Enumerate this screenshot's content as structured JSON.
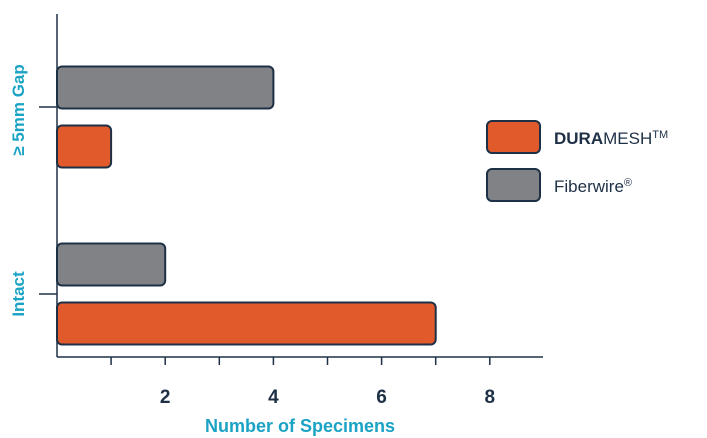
{
  "chart_data": {
    "type": "bar",
    "orientation": "horizontal",
    "categories": [
      "≥ 5mm Gap",
      "Intact"
    ],
    "series": [
      {
        "name": "DURAMESH™",
        "values": [
          1,
          7
        ],
        "color": "#e05a2b"
      },
      {
        "name": "Fiberwire®",
        "values": [
          4,
          2
        ],
        "color": "#808285"
      }
    ],
    "xlabel": "Number of Specimens",
    "ylabel": "",
    "xlim": [
      0,
      9
    ],
    "xticks": [
      2,
      4,
      6,
      8
    ],
    "grid": false,
    "legend_position": "right"
  },
  "legend": {
    "duramesh": {
      "bold": "DURA",
      "rest": "MESH",
      "sup": "TM"
    },
    "fiberwire": {
      "text": "Fiberwire",
      "sup": "®"
    }
  },
  "colors": {
    "axis": "#1e3045",
    "accent_label": "#1aa3c4",
    "bar_stroke": "#1e3045"
  }
}
